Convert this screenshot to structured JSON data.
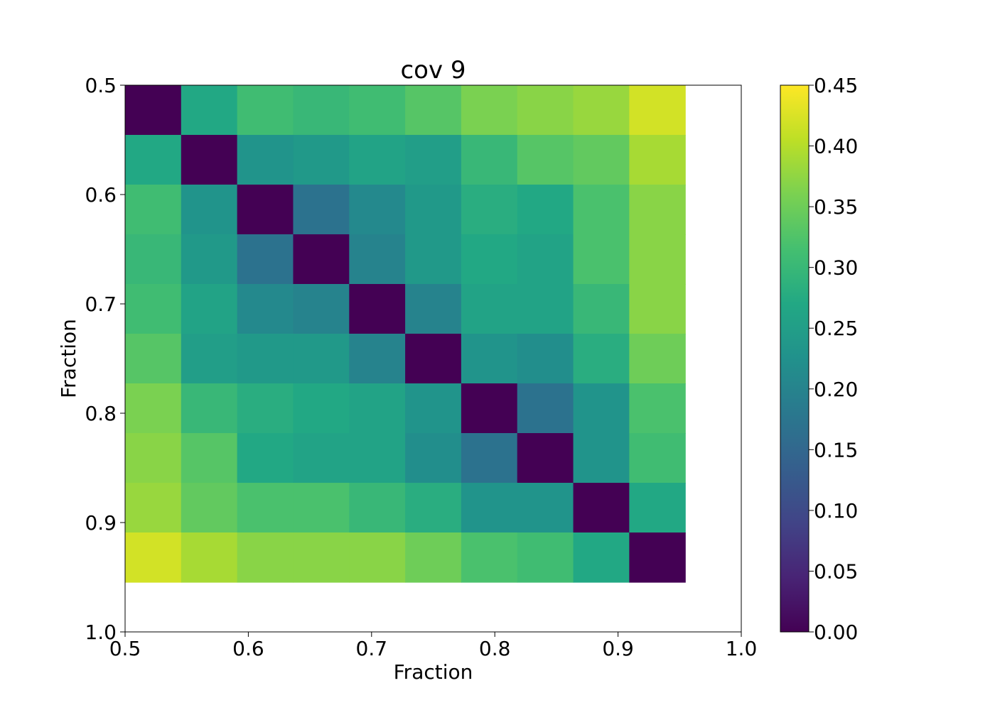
{
  "chart_data": {
    "type": "heatmap",
    "title": "cov 9",
    "xlabel": "Fraction",
    "ylabel": "Fraction",
    "xlim": [
      0.5,
      1.0
    ],
    "ylim": [
      0.5,
      1.0
    ],
    "y_inverted": true,
    "x_ticks": [
      0.5,
      0.6,
      0.7,
      0.8,
      0.9,
      1.0
    ],
    "x_tick_labels": [
      "0.5",
      "0.6",
      "0.7",
      "0.8",
      "0.9",
      "1.0"
    ],
    "y_ticks": [
      0.5,
      0.6,
      0.7,
      0.8,
      0.9,
      1.0
    ],
    "y_tick_labels": [
      "0.5",
      "0.6",
      "0.7",
      "0.8",
      "0.9",
      "1.0"
    ],
    "cell_edges": [
      0.5,
      0.54545,
      0.59091,
      0.63636,
      0.68182,
      0.72727,
      0.77273,
      0.81818,
      0.86364,
      0.90909,
      0.95455
    ],
    "colormap": "viridis",
    "colorbar": {
      "min": 0.0,
      "max": 0.45,
      "ticks": [
        0.0,
        0.05,
        0.1,
        0.15,
        0.2,
        0.25,
        0.3,
        0.35,
        0.4,
        0.45
      ],
      "tick_labels": [
        "0.00",
        "0.05",
        "0.10",
        "0.15",
        "0.20",
        "0.25",
        "0.30",
        "0.35",
        "0.40",
        "0.45"
      ]
    },
    "matrix": [
      [
        0.0,
        0.27,
        0.31,
        0.3,
        0.31,
        0.33,
        0.36,
        0.37,
        0.38,
        0.42
      ],
      [
        0.27,
        0.0,
        0.23,
        0.24,
        0.26,
        0.25,
        0.3,
        0.33,
        0.34,
        0.39
      ],
      [
        0.31,
        0.23,
        0.0,
        0.17,
        0.21,
        0.24,
        0.28,
        0.27,
        0.32,
        0.37
      ],
      [
        0.3,
        0.24,
        0.17,
        0.0,
        0.2,
        0.24,
        0.27,
        0.26,
        0.32,
        0.37
      ],
      [
        0.31,
        0.26,
        0.21,
        0.2,
        0.0,
        0.2,
        0.26,
        0.26,
        0.3,
        0.37
      ],
      [
        0.33,
        0.25,
        0.24,
        0.24,
        0.2,
        0.0,
        0.23,
        0.22,
        0.28,
        0.35
      ],
      [
        0.36,
        0.3,
        0.28,
        0.27,
        0.26,
        0.23,
        0.0,
        0.17,
        0.23,
        0.32
      ],
      [
        0.37,
        0.33,
        0.27,
        0.26,
        0.26,
        0.22,
        0.17,
        0.0,
        0.23,
        0.31
      ],
      [
        0.38,
        0.34,
        0.32,
        0.32,
        0.3,
        0.28,
        0.23,
        0.23,
        0.0,
        0.27
      ],
      [
        0.42,
        0.39,
        0.37,
        0.37,
        0.37,
        0.35,
        0.32,
        0.31,
        0.27,
        0.0
      ]
    ]
  }
}
